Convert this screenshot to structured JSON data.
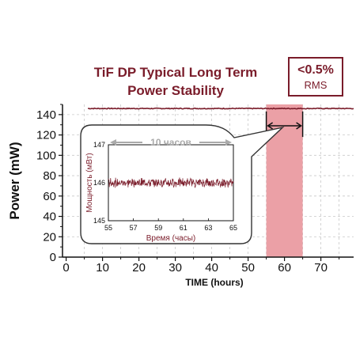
{
  "colors": {
    "accent": "#7a1c2a",
    "shade": "#eba0a6",
    "grid": "#c8c8c8",
    "axis": "#111111",
    "inset_label": "#7a1c2a",
    "inset_arrow": "#aaaaaa"
  },
  "chart_data": [
    {
      "type": "line",
      "title_lines": [
        "TiF DP Typical Long Term",
        "Power Stability"
      ],
      "badge_lines": [
        "<0.5%",
        "RMS"
      ],
      "xlabel": "TIME (hours)",
      "ylabel": "Power (mW)",
      "xlim": [
        -1,
        79
      ],
      "ylim": [
        0,
        150
      ],
      "x_ticks": [
        0,
        10,
        20,
        30,
        40,
        50,
        60,
        70
      ],
      "y_ticks": [
        0,
        20,
        40,
        60,
        80,
        100,
        120,
        140
      ],
      "grid": true,
      "highlight_range": [
        55,
        65
      ],
      "series": [
        {
          "x_start": 6,
          "x_end": 79,
          "level": 146,
          "noise": 0.4
        }
      ]
    },
    {
      "type": "line",
      "inset": true,
      "xlabel": "Время (часы)",
      "ylabel": "Мощность (мВт)",
      "span_label": "10 часов",
      "xlim": [
        55,
        65
      ],
      "ylim": [
        145,
        147
      ],
      "x_ticks": [
        55,
        57,
        59,
        61,
        63,
        65
      ],
      "y_ticks": [
        145,
        146,
        147
      ],
      "series": [
        {
          "x_start": 55,
          "x_end": 65,
          "mean": 146.0,
          "noise": 0.1
        }
      ]
    }
  ]
}
